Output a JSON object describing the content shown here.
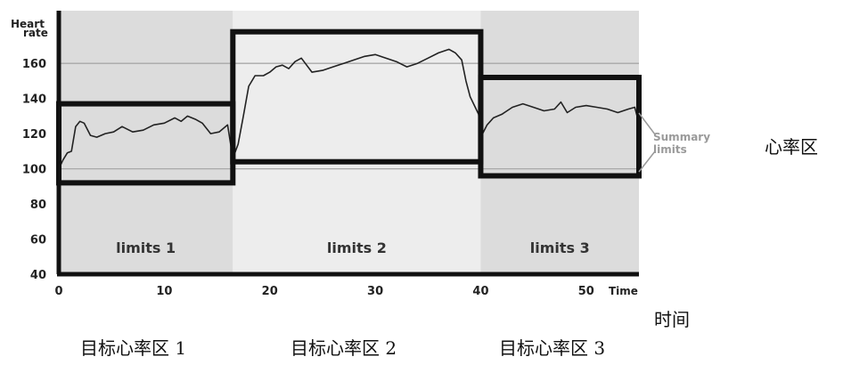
{
  "chart_data": {
    "type": "line",
    "ylabel": "Heart rate",
    "xlabel": "Time",
    "xlim": [
      0,
      55
    ],
    "ylim": [
      40,
      190
    ],
    "x_ticks": [
      0,
      10,
      20,
      30,
      40,
      50
    ],
    "y_ticks": [
      40,
      60,
      80,
      100,
      120,
      140,
      160
    ],
    "zones": [
      {
        "label": "limits 1",
        "x_start": 0,
        "x_end": 16.5,
        "lower": 92,
        "upper": 137,
        "shade": "#dcdcdc"
      },
      {
        "label": "limits 2",
        "x_start": 16.5,
        "x_end": 40,
        "lower": 104,
        "upper": 178,
        "shade": "#ededed"
      },
      {
        "label": "limits 3",
        "x_start": 40,
        "x_end": 55,
        "lower": 96,
        "upper": 152,
        "shade": "#dcdcdc"
      }
    ],
    "reference_lines": [
      160,
      100
    ],
    "series": [
      {
        "x": [
          0,
          0.4,
          0.8,
          1.2,
          1.6,
          2.0,
          2.4,
          3.0,
          3.6,
          4.4,
          5.2,
          6.0,
          7.0,
          8.0,
          9.0,
          10.0,
          11.0,
          11.6,
          12.2,
          13.0,
          13.6,
          14.4,
          15.2,
          16.0,
          16.5,
          17.0,
          17.5,
          18.0,
          18.6,
          19.4,
          20.0,
          20.6,
          21.2,
          21.8,
          22.4,
          23.0,
          24.0,
          25.0,
          26.0,
          27.0,
          28.0,
          29.0,
          30.0,
          31.0,
          32.0,
          33.0,
          34.0,
          35.0,
          36.0,
          37.0,
          37.6,
          38.2,
          38.6,
          39.0,
          39.4,
          39.8,
          40.0,
          40.6,
          41.2,
          42.0,
          43.0,
          44.0,
          45.0,
          46.0,
          47.0,
          47.6,
          48.2,
          49.0,
          50.0,
          51.0,
          52.0,
          53.0,
          54.0,
          54.6,
          55.0
        ],
        "values": [
          100,
          105,
          109,
          110,
          124,
          127,
          126,
          119,
          118,
          120,
          121,
          124,
          121,
          122,
          125,
          126,
          129,
          127,
          130,
          128,
          126,
          120,
          121,
          125,
          106,
          114,
          130,
          147,
          153,
          153,
          155,
          158,
          159,
          157,
          161,
          163,
          155,
          156,
          158,
          160,
          162,
          164,
          165,
          163,
          161,
          158,
          160,
          163,
          166,
          168,
          166,
          162,
          150,
          141,
          136,
          131,
          118,
          125,
          129,
          131,
          135,
          137,
          135,
          133,
          134,
          138,
          132,
          135,
          136,
          135,
          134,
          132,
          134,
          135,
          126
        ]
      }
    ],
    "annotation": "Summary limits"
  },
  "text": {
    "ylabel_line1": "Heart",
    "ylabel_line2": "rate",
    "xlabel": "Time",
    "summary_line1": "Summary",
    "summary_line2": "limits",
    "cn_right": "心率区",
    "cn_time": "时间",
    "cn_zone1": "目标心率区 1",
    "cn_zone2": "目标心率区 2",
    "cn_zone3": "目标心率区 3"
  }
}
